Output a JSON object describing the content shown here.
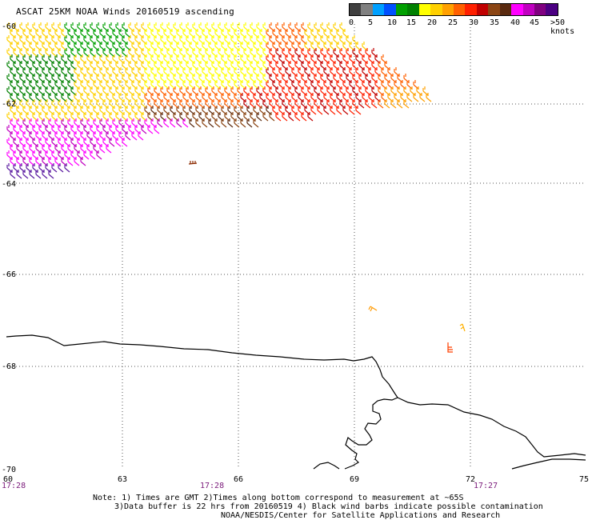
{
  "title": "ASCAT 25KM NOAA Winds 20160519 ascending",
  "legend": {
    "colors": [
      "#404040",
      "#808080",
      "#00a0ff",
      "#0050ff",
      "#00a000",
      "#008000",
      "#ffff00",
      "#ffd000",
      "#ffa000",
      "#ff6000",
      "#ff2000",
      "#c00000",
      "#8b4513",
      "#5a2a10",
      "#ff00ff",
      "#c000c0",
      "#800080",
      "#4b0082"
    ],
    "labels": [
      "0",
      "5",
      "10",
      "15",
      "20",
      "25",
      "30",
      "35",
      "40",
      "45",
      ">50 knots"
    ]
  },
  "axes": {
    "lon_labels": [
      "60",
      "63",
      "66",
      "69",
      "72",
      "75"
    ],
    "lat_labels": [
      "-60",
      "-62",
      "-64",
      "-66",
      "-68",
      "-70"
    ]
  },
  "times": [
    "17:28",
    "17:28",
    "17:27"
  ],
  "notes": {
    "line1": "Note: 1) Times are GMT 2)Times along bottom correspond to measurement at ~65S",
    "line2": "3)Data buffer is 22 hrs from 20160519 4) Black wind barbs indicate possible contamination",
    "line3": "NOAA/NESDIS/Center for Satellite Applications and Research"
  },
  "colors": {
    "grid": "#555555",
    "coast": "#000000",
    "time_text": "#7a1a7a"
  }
}
